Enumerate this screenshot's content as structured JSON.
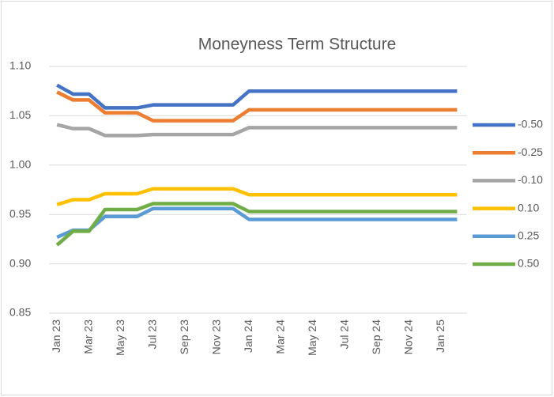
{
  "chart_data": {
    "type": "line",
    "title": "Moneyness Term Structure",
    "categories": [
      "Jan 23",
      null,
      "Mar 23",
      null,
      "May 23",
      null,
      "Jul 23",
      null,
      "Sep 23",
      null,
      "Nov 23",
      null,
      "Jan 24",
      null,
      "Mar 24",
      null,
      "May 24",
      null,
      "Jul 24",
      null,
      "Sep 24",
      null,
      "Nov 24",
      null,
      "Jan 25",
      null
    ],
    "series": [
      {
        "name": "-0.50",
        "color": "#4472c4",
        "values": [
          1.081,
          1.072,
          1.072,
          1.058,
          1.058,
          1.058,
          1.061,
          1.061,
          1.061,
          1.061,
          1.061,
          1.061,
          1.075,
          1.075,
          1.075,
          1.075,
          1.075,
          1.075,
          1.075,
          1.075,
          1.075,
          1.075,
          1.075,
          1.075,
          1.075,
          1.075
        ]
      },
      {
        "name": "-0.25",
        "color": "#ed7d31",
        "values": [
          1.074,
          1.066,
          1.066,
          1.053,
          1.053,
          1.053,
          1.045,
          1.045,
          1.045,
          1.045,
          1.045,
          1.045,
          1.056,
          1.056,
          1.056,
          1.056,
          1.056,
          1.056,
          1.056,
          1.056,
          1.056,
          1.056,
          1.056,
          1.056,
          1.056,
          1.056
        ]
      },
      {
        "name": "-0.10",
        "color": "#a5a5a5",
        "values": [
          1.041,
          1.037,
          1.037,
          1.03,
          1.03,
          1.03,
          1.031,
          1.031,
          1.031,
          1.031,
          1.031,
          1.031,
          1.038,
          1.038,
          1.038,
          1.038,
          1.038,
          1.038,
          1.038,
          1.038,
          1.038,
          1.038,
          1.038,
          1.038,
          1.038,
          1.038
        ]
      },
      {
        "name": "0.10",
        "color": "#ffc000",
        "values": [
          0.96,
          0.965,
          0.965,
          0.971,
          0.971,
          0.971,
          0.976,
          0.976,
          0.976,
          0.976,
          0.976,
          0.976,
          0.97,
          0.97,
          0.97,
          0.97,
          0.97,
          0.97,
          0.97,
          0.97,
          0.97,
          0.97,
          0.97,
          0.97,
          0.97,
          0.97
        ]
      },
      {
        "name": "0.25",
        "color": "#5b9bd5",
        "values": [
          0.927,
          0.934,
          0.934,
          0.948,
          0.948,
          0.948,
          0.956,
          0.956,
          0.956,
          0.956,
          0.956,
          0.956,
          0.945,
          0.945,
          0.945,
          0.945,
          0.945,
          0.945,
          0.945,
          0.945,
          0.945,
          0.945,
          0.945,
          0.945,
          0.945,
          0.945
        ]
      },
      {
        "name": "0.50",
        "color": "#70ad47",
        "values": [
          0.919,
          0.933,
          0.933,
          0.955,
          0.955,
          0.955,
          0.961,
          0.961,
          0.961,
          0.961,
          0.961,
          0.961,
          0.953,
          0.953,
          0.953,
          0.953,
          0.953,
          0.953,
          0.953,
          0.953,
          0.953,
          0.953,
          0.953,
          0.953,
          0.953,
          0.953
        ]
      }
    ],
    "ylim": [
      0.85,
      1.1
    ],
    "yticks": [
      {
        "value": 0.85,
        "label": "0.85"
      },
      {
        "value": 0.9,
        "label": "0.90"
      },
      {
        "value": 0.95,
        "label": "0.95"
      },
      {
        "value": 1.0,
        "label": "1.00"
      },
      {
        "value": 1.05,
        "label": "1.05"
      },
      {
        "value": 1.1,
        "label": "1.10"
      }
    ],
    "grid": true,
    "legend": "right"
  }
}
